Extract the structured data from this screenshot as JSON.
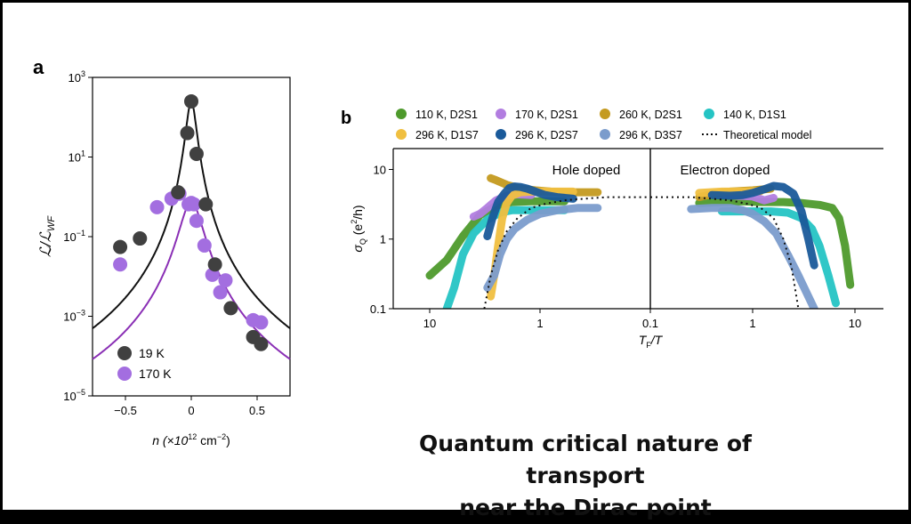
{
  "chart_data": [
    {
      "panel": "a",
      "type": "scatter",
      "xlabel": "n (×10",
      "xlabel_sup": "12",
      "xlabel_unit": " cm",
      "xlabel_unit_sup": "−2",
      "xlabel_close": ")",
      "ylabel": "ℒ/ℒ",
      "ylabel_sub": "WF",
      "xlim": [
        -0.75,
        0.75
      ],
      "ylim_log10": [
        -5,
        3
      ],
      "yscale": "log",
      "xticks": [
        {
          "value": -0.5,
          "label": "−0.5"
        },
        {
          "value": 0,
          "label": "0"
        },
        {
          "value": 0.5,
          "label": "0.5"
        }
      ],
      "yticks": [
        {
          "exp": 3,
          "base": "10",
          "sup": "3"
        },
        {
          "exp": 1,
          "base": "10",
          "sup": "1"
        },
        {
          "exp": -1,
          "base": "10",
          "sup": "−1"
        },
        {
          "exp": -3,
          "base": "10",
          "sup": "−3"
        },
        {
          "exp": -5,
          "base": "10",
          "sup": "−5"
        }
      ],
      "legend_position": "bottom-left",
      "series": [
        {
          "name": "19 K",
          "color": "#404040",
          "points": [
            [
              -0.54,
              0.055
            ],
            [
              -0.39,
              0.09
            ],
            [
              -0.1,
              1.3
            ],
            [
              -0.03,
              40
            ],
            [
              0,
              250
            ],
            [
              0.04,
              12
            ],
            [
              0.11,
              0.65
            ],
            [
              0.18,
              0.02
            ],
            [
              0.3,
              0.0016
            ],
            [
              0.47,
              0.0003
            ],
            [
              0.53,
              0.0002
            ]
          ],
          "model": {
            "peak": 250,
            "width": 0.038,
            "exponent": 4.4
          }
        },
        {
          "name": "170 K",
          "color": "#a36ee0",
          "points": [
            [
              -0.54,
              0.02
            ],
            [
              -0.26,
              0.55
            ],
            [
              -0.15,
              0.9
            ],
            [
              -0.09,
              1.2
            ],
            [
              -0.02,
              0.65
            ],
            [
              0,
              0.7
            ],
            [
              0.02,
              0.65
            ],
            [
              0.04,
              0.25
            ],
            [
              0.1,
              0.06
            ],
            [
              0.16,
              0.011
            ],
            [
              0.22,
              0.004
            ],
            [
              0.26,
              0.008
            ],
            [
              0.47,
              0.0008
            ],
            [
              0.53,
              0.0007
            ]
          ],
          "model": {
            "peak": 0.75,
            "width": 0.082,
            "exponent": 4.1
          }
        }
      ]
    },
    {
      "panel": "b",
      "type": "line",
      "xlabel": "T",
      "xlabel_sub": "F",
      "xlabel_tail": "/T",
      "ylabel": "σ",
      "ylabel_sub": "Q",
      "ylabel_open": " (e",
      "ylabel_sup": "2",
      "ylabel_tail": "/h)",
      "yscale": "log",
      "xscale": "log (mirrored about T_F/T = 0.1)",
      "ylim": [
        0.1,
        20
      ],
      "yticks": [
        {
          "value": 10,
          "label": "10"
        },
        {
          "value": 1,
          "label": "1"
        },
        {
          "value": 0.1,
          "label": "0.1"
        }
      ],
      "xticks_left": [
        {
          "value": 10,
          "label": "10"
        },
        {
          "value": 1,
          "label": "1"
        },
        {
          "value": 0.1,
          "label": "0.1"
        }
      ],
      "xticks_right": [
        {
          "value": 1,
          "label": "1"
        },
        {
          "value": 10,
          "label": "10"
        }
      ],
      "annotations": {
        "left": "Hole doped",
        "right": "Electron doped"
      },
      "legend_position": "top",
      "series": [
        {
          "name": "110 K, D2S1",
          "color": "#4e9a2c",
          "hole": {
            "x": [
              10,
              7,
              5,
              3.5,
              2.5,
              1.8,
              1.2,
              0.8,
              0.6
            ],
            "y": [
              0.3,
              0.5,
              1.1,
              2.2,
              3.0,
              3.4,
              3.5,
              3.5,
              3.5
            ]
          },
          "electron": {
            "x": [
              0.3,
              0.5,
              0.8,
              1.2,
              2,
              3,
              4.5,
              6,
              7,
              8,
              9
            ],
            "y": [
              3.3,
              3.4,
              3.5,
              3.4,
              3.4,
              3.3,
              3.1,
              2.8,
              2.0,
              0.8,
              0.22
            ]
          }
        },
        {
          "name": "170 K, D2S1",
          "color": "#b27de0",
          "hole": {
            "x": [
              4,
              3.5,
              3,
              2.5,
              2,
              1.6,
              1.2
            ],
            "y": [
              2.1,
              2.3,
              2.8,
              3.6,
              4.2,
              4.4,
              4.3
            ]
          },
          "electron": {
            "x": [
              0.5,
              0.7,
              1,
              1.3,
              1.6
            ],
            "y": [
              4.4,
              4.2,
              4.1,
              3.6,
              3.9
            ]
          }
        },
        {
          "name": "260 K, D2S1",
          "color": "#c49a1f",
          "hole": {
            "x": [
              2.8,
              2.5,
              2,
              1.5,
              1.1,
              0.8,
              0.55,
              0.4,
              0.3
            ],
            "y": [
              7.5,
              7.0,
              6.0,
              5.3,
              5.0,
              4.8,
              4.7,
              4.7,
              4.7
            ]
          },
          "electron": {
            "x": [
              0.3,
              0.4,
              0.6,
              1,
              1.5
            ],
            "y": [
              4.0,
              4.4,
              4.8,
              5.0,
              5.3
            ]
          }
        },
        {
          "name": "140 K, D1S1",
          "color": "#25c4c4",
          "hole": {
            "x": [
              7,
              6,
              5,
              4,
              3,
              2.3,
              1.8,
              1.3,
              0.9,
              0.6
            ],
            "y": [
              0.1,
              0.2,
              0.6,
              1.2,
              1.9,
              2.4,
              2.6,
              2.6,
              2.6,
              2.6
            ]
          },
          "electron": {
            "x": [
              0.5,
              1,
              1.5,
              2.2,
              3,
              3.8,
              4.5,
              5.5,
              6.5
            ],
            "y": [
              2.5,
              2.5,
              2.5,
              2.4,
              2.0,
              1.4,
              0.8,
              0.3,
              0.12
            ]
          }
        },
        {
          "name": "296 K, D1S7",
          "color": "#f0bf40",
          "hole": {
            "x": [
              2.8,
              2.6,
              2.4,
              2.2,
              2,
              1.8,
              1.5,
              1.2,
              1,
              0.7,
              0.5
            ],
            "y": [
              0.15,
              0.3,
              0.8,
              2.0,
              3.3,
              4.2,
              4.7,
              4.8,
              4.8,
              4.8,
              4.8
            ]
          },
          "electron": {
            "x": [
              0.3,
              0.5,
              0.8,
              1.2
            ],
            "y": [
              4.6,
              4.8,
              4.8,
              4.9
            ]
          }
        },
        {
          "name": "296 K, D2S7",
          "color": "#1a5a9a",
          "hole": {
            "x": [
              3,
              2.7,
              2.4,
              2.1,
              1.9,
              1.7,
              1.5,
              1.3,
              1.1,
              0.9,
              0.7,
              0.5
            ],
            "y": [
              1.1,
              2.0,
              3.4,
              4.5,
              5.4,
              5.7,
              5.6,
              5.3,
              4.8,
              4.3,
              4.0,
              3.8
            ]
          },
          "electron": {
            "x": [
              0.4,
              0.6,
              0.8,
              1,
              1.3,
              1.6,
              2,
              2.5,
              3,
              3.5,
              4
            ],
            "y": [
              4.3,
              4.2,
              4.3,
              4.6,
              5.2,
              5.8,
              5.6,
              4.5,
              2.5,
              1.0,
              0.42
            ]
          }
        },
        {
          "name": "296 K, D3S7",
          "color": "#7b9ccc",
          "hole": {
            "x": [
              3,
              2.6,
              2.3,
              2,
              1.7,
              1.3,
              1,
              0.7,
              0.45,
              0.3
            ],
            "y": [
              0.2,
              0.3,
              0.6,
              1.0,
              1.4,
              1.9,
              2.3,
              2.6,
              2.8,
              2.8
            ]
          },
          "electron": {
            "x": [
              0.25,
              0.4,
              0.6,
              0.8,
              1,
              1.3,
              1.7,
              2.2,
              2.8,
              3.5,
              4
            ],
            "y": [
              2.7,
              2.8,
              2.8,
              2.6,
              2.3,
              1.8,
              1.2,
              0.6,
              0.3,
              0.15,
              0.1
            ]
          }
        },
        {
          "name": "Theoretical model",
          "color": "#111111",
          "dashed": true,
          "hole": {
            "x": [
              3.2,
              2.8,
              2.4,
              2,
              1.6,
              1.2,
              0.9,
              0.6,
              0.4,
              0.25,
              0.1
            ],
            "y": [
              0.1,
              0.3,
              0.7,
              1.3,
              2.0,
              2.8,
              3.2,
              3.6,
              3.8,
              4.0,
              4.0
            ]
          },
          "electron": {
            "x": [
              0.1,
              0.25,
              0.4,
              0.6,
              0.9,
              1.2,
              1.6,
              2,
              2.4,
              2.8
            ],
            "y": [
              4.0,
              4.0,
              3.8,
              3.6,
              3.2,
              2.8,
              2.0,
              1.0,
              0.4,
              0.1
            ]
          }
        }
      ]
    }
  ],
  "caption": {
    "line1": "Quantum critical nature of transport",
    "line2": "near the Dirac point"
  }
}
